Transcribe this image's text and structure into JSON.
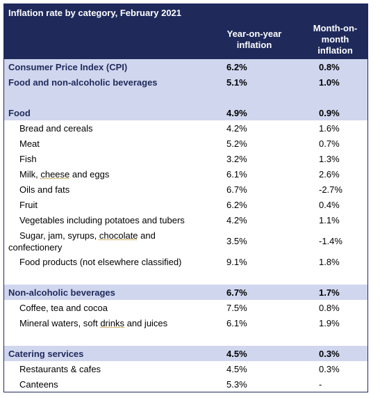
{
  "header": {
    "title": "Inflation rate by category, February 2021",
    "col_yoy_line1": "Year-on-year",
    "col_yoy_line2": "inflation",
    "col_mom_line1": "Month-on-",
    "col_mom_line2": "month",
    "col_mom_line3": "inflation"
  },
  "rows": {
    "cpi": {
      "label": "Consumer Price Index (CPI)",
      "yoy": "6.2%",
      "mom": "0.8%"
    },
    "food_nab": {
      "label": "Food and non-alcoholic beverages",
      "yoy": "5.1%",
      "mom": "1.0%"
    },
    "food": {
      "label": "Food",
      "yoy": "4.9%",
      "mom": "0.9%"
    },
    "bread": {
      "label": "Bread and cereals",
      "yoy": "4.2%",
      "mom": "1.6%"
    },
    "meat": {
      "label": "Meat",
      "yoy": "5.2%",
      "mom": "0.7%"
    },
    "fish": {
      "label": "Fish",
      "yoy": "3.2%",
      "mom": "1.3%"
    },
    "milk": {
      "label_a": "Milk, ",
      "label_b": "cheese",
      "label_c": " and eggs",
      "yoy": "6.1%",
      "mom": "2.6%"
    },
    "oils": {
      "label": "Oils and fats",
      "yoy": "6.7%",
      "mom": "-2.7%"
    },
    "fruit": {
      "label": "Fruit",
      "yoy": "6.2%",
      "mom": "0.4%"
    },
    "veg": {
      "label": "Vegetables including potatoes and tubers",
      "yoy": "4.2%",
      "mom": "1.1%"
    },
    "sugar": {
      "label_a": "Sugar, jam, syrups, ",
      "label_b": "chocolate",
      "label_c": " and confectionery",
      "yoy": "3.5%",
      "mom": "-1.4%"
    },
    "food_products": {
      "label": "Food products (not elsewhere classified)",
      "yoy": "9.1%",
      "mom": "1.8%"
    },
    "nab": {
      "label": "Non-alcoholic beverages",
      "yoy": "6.7%",
      "mom": "1.7%"
    },
    "coffee": {
      "label": "Coffee, tea and cocoa",
      "yoy": "7.5%",
      "mom": "0.8%"
    },
    "mineral": {
      "label_a": "Mineral waters, soft ",
      "label_b": "drinks",
      "label_c": " and juices",
      "yoy": "6.1%",
      "mom": "1.9%"
    },
    "catering": {
      "label": "Catering services",
      "yoy": "4.5%",
      "mom": "0.3%"
    },
    "restaurants": {
      "label": "Restaurants & cafes",
      "yoy": "4.5%",
      "mom": "0.3%"
    },
    "canteens": {
      "label": "Canteens",
      "yoy": "5.3%",
      "mom": "-"
    }
  }
}
